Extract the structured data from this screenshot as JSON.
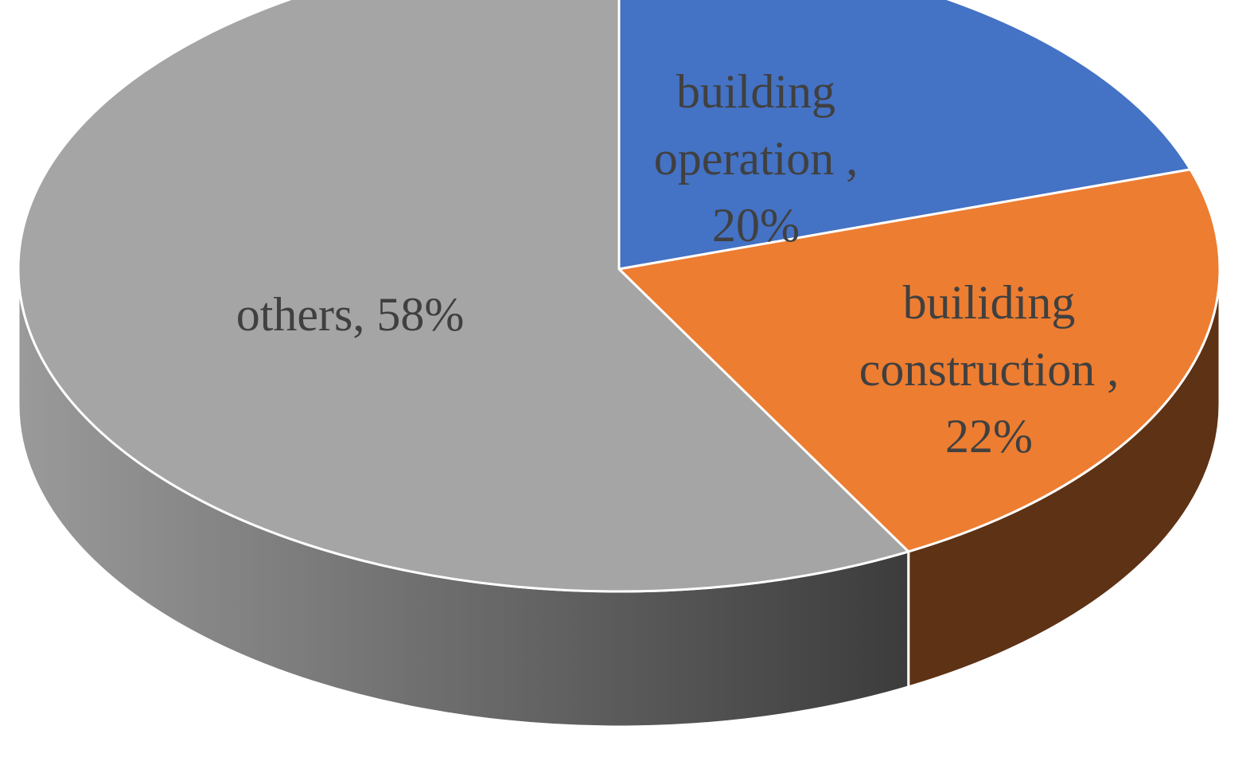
{
  "chart_data": {
    "type": "pie",
    "style": "3d",
    "title": "",
    "legend": "none",
    "slices": [
      {
        "name": "building operation",
        "value": 20,
        "label_lines": [
          "building",
          "operation ,",
          "20%"
        ],
        "color": "#4472C4",
        "side_color": "#2F528F"
      },
      {
        "name": "builiding construction",
        "value": 22,
        "label_lines": [
          "builiding",
          "construction ,",
          "22%"
        ],
        "color": "#ED7D31",
        "side_color": "#5E3214"
      },
      {
        "name": "others",
        "value": 58,
        "label_lines": [
          "others, 58%"
        ],
        "color": "#A5A5A5",
        "side_color": "#6E6E6E"
      }
    ]
  }
}
